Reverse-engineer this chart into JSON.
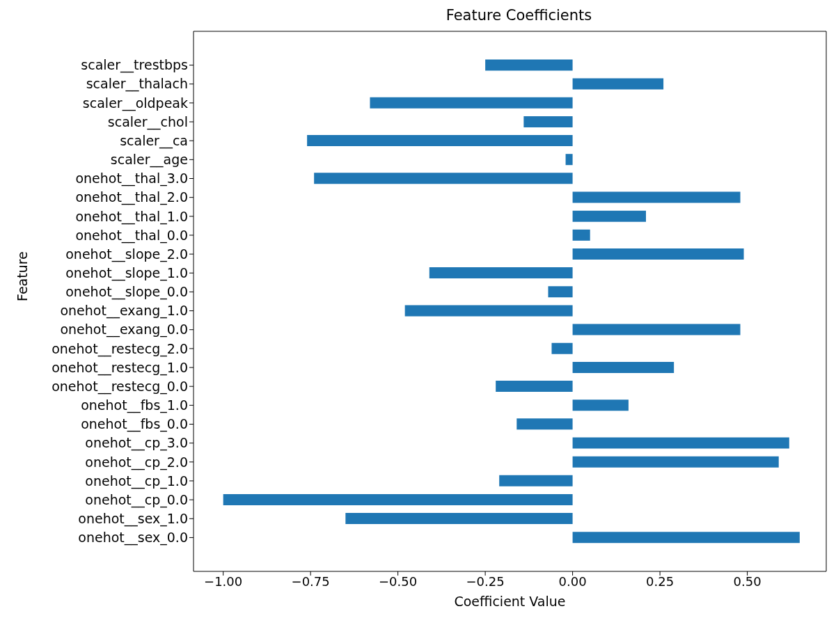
{
  "chart_data": {
    "type": "bar",
    "orientation": "horizontal",
    "title": "Feature Coefficients",
    "xlabel": "Coefficient Value",
    "ylabel": "Feature",
    "categories": [
      "scaler__trestbps",
      "scaler__thalach",
      "scaler__oldpeak",
      "scaler__chol",
      "scaler__ca",
      "scaler__age",
      "onehot__thal_3.0",
      "onehot__thal_2.0",
      "onehot__thal_1.0",
      "onehot__thal_0.0",
      "onehot__slope_2.0",
      "onehot__slope_1.0",
      "onehot__slope_0.0",
      "onehot__exang_1.0",
      "onehot__exang_0.0",
      "onehot__restecg_2.0",
      "onehot__restecg_1.0",
      "onehot__restecg_0.0",
      "onehot__fbs_1.0",
      "onehot__fbs_0.0",
      "onehot__cp_3.0",
      "onehot__cp_2.0",
      "onehot__cp_1.0",
      "onehot__cp_0.0",
      "onehot__sex_1.0",
      "onehot__sex_0.0"
    ],
    "values": [
      -0.25,
      0.26,
      -0.58,
      -0.14,
      -0.76,
      -0.02,
      -0.74,
      0.48,
      0.21,
      0.05,
      0.49,
      -0.41,
      -0.07,
      -0.48,
      0.48,
      -0.06,
      0.29,
      -0.22,
      0.16,
      -0.16,
      0.62,
      0.59,
      -0.21,
      -1.0,
      -0.65,
      0.65
    ],
    "color": "#1f77b4",
    "xlim": [
      -1.085,
      0.726
    ],
    "xticks": [
      {
        "value": -1,
        "label": "−1.00"
      },
      {
        "value": -0.75,
        "label": "−0.75"
      },
      {
        "value": -0.5,
        "label": "−0.50"
      },
      {
        "value": -0.25,
        "label": "−0.25"
      },
      {
        "value": 0,
        "label": "0.00"
      },
      {
        "value": 0.25,
        "label": "0.25"
      },
      {
        "value": 0.5,
        "label": "0.50"
      }
    ],
    "grid": false
  }
}
